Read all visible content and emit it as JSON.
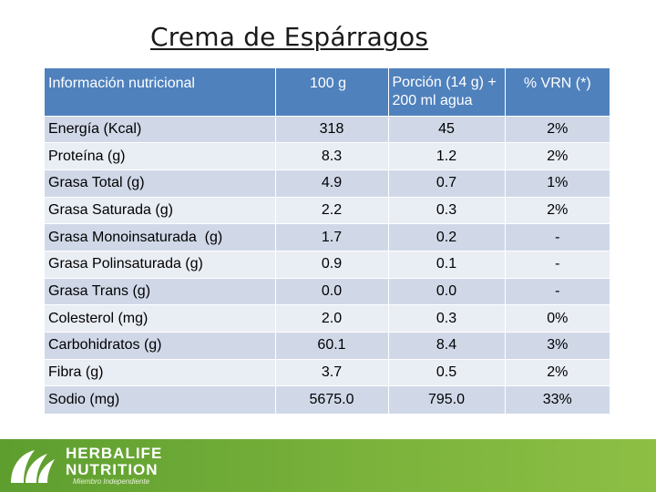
{
  "title": "Crema de Espárragos",
  "table": {
    "headers": [
      "Información nutricional",
      "100 g",
      "Porción (14 g) + 200 ml agua",
      "% VRN (*)"
    ],
    "rows": [
      [
        "Energía (Kcal)",
        "318",
        "45",
        "2%"
      ],
      [
        "Proteína (g)",
        "8.3",
        "1.2",
        "2%"
      ],
      [
        "Grasa Total (g)",
        "4.9",
        "0.7",
        "1%"
      ],
      [
        "Grasa Saturada (g)",
        "2.2",
        "0.3",
        "2%"
      ],
      [
        "Grasa Monoinsaturada  (g)",
        "1.7",
        "0.2",
        "-"
      ],
      [
        "Grasa Polinsaturada (g)",
        "0.9",
        "0.1",
        "-"
      ],
      [
        "Grasa Trans (g)",
        "0.0",
        "0.0",
        "-"
      ],
      [
        "Colesterol (mg)",
        "2.0",
        "0.3",
        "0%"
      ],
      [
        "Carbohidratos (g)",
        "60.1",
        "8.4",
        "3%"
      ],
      [
        "Fibra (g)",
        "3.7",
        "0.5",
        "2%"
      ],
      [
        "Sodio (mg)",
        "5675.0",
        "795.0",
        "33%"
      ]
    ]
  },
  "footer": {
    "logo_line1": "HERBALIFE",
    "logo_line2": "NUTRITION",
    "logo_sub": "Miembro Independiente",
    "logo_icon": "herbalife-leaf-icon"
  },
  "colors": {
    "header_bg": "#4f81bd",
    "row_dark": "#d0d8e8",
    "row_light": "#e9edf4",
    "brand_green": "#7ab23b"
  }
}
